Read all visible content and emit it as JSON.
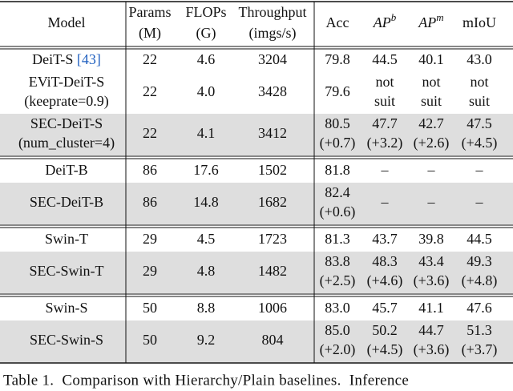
{
  "table": {
    "header": [
      {
        "lines": [
          "Model"
        ]
      },
      {
        "lines": [
          "Params",
          "(M)"
        ]
      },
      {
        "lines": [
          "FLOPs",
          "(G)"
        ]
      },
      {
        "lines": [
          "Throughput",
          "(imgs/s)"
        ]
      },
      {
        "lines": [
          "Acc"
        ]
      },
      {
        "base": "AP",
        "sup": "b"
      },
      {
        "base": "AP",
        "sup": "m"
      },
      {
        "lines": [
          "mIoU"
        ]
      }
    ],
    "delta_color": "#e8261f",
    "cite_color": "#1f5fbf",
    "shade_color": "#dedede",
    "groups": [
      [
        {
          "shaded": false,
          "cells": [
            {
              "lines": [
                "DeiT-S"
              ],
              "cite": "[43]"
            },
            {
              "lines": [
                "22"
              ]
            },
            {
              "lines": [
                "4.6"
              ]
            },
            {
              "lines": [
                "3204"
              ]
            },
            {
              "lines": [
                "79.8"
              ]
            },
            {
              "lines": [
                "44.5"
              ]
            },
            {
              "lines": [
                "40.1"
              ]
            },
            {
              "lines": [
                "43.0"
              ]
            }
          ]
        },
        {
          "shaded": false,
          "cells": [
            {
              "lines": [
                "EViT-DeiT-S",
                "(keeprate=0.9)"
              ]
            },
            {
              "lines": [
                "22"
              ]
            },
            {
              "lines": [
                "4.0"
              ]
            },
            {
              "lines": [
                "3428"
              ]
            },
            {
              "lines": [
                "79.6"
              ]
            },
            {
              "lines": [
                "not",
                "suit"
              ]
            },
            {
              "lines": [
                "not",
                "suit"
              ]
            },
            {
              "lines": [
                "not",
                "suit"
              ]
            }
          ]
        },
        {
          "shaded": true,
          "cells": [
            {
              "lines": [
                "SEC-DeiT-S",
                "(num_cluster=4)"
              ]
            },
            {
              "lines": [
                "22"
              ]
            },
            {
              "lines": [
                "4.1"
              ]
            },
            {
              "lines": [
                "3412"
              ]
            },
            {
              "lines": [
                "80.5"
              ],
              "delta": "(+0.7)"
            },
            {
              "lines": [
                "47.7"
              ],
              "delta": "(+3.2)"
            },
            {
              "lines": [
                "42.7"
              ],
              "delta": "(+2.6)"
            },
            {
              "lines": [
                "47.5"
              ],
              "delta": "(+4.5)"
            }
          ]
        }
      ],
      [
        {
          "shaded": false,
          "cells": [
            {
              "lines": [
                "DeiT-B"
              ]
            },
            {
              "lines": [
                "86"
              ]
            },
            {
              "lines": [
                "17.6"
              ]
            },
            {
              "lines": [
                "1502"
              ]
            },
            {
              "lines": [
                "81.8"
              ]
            },
            {
              "lines": [
                "–"
              ]
            },
            {
              "lines": [
                "–"
              ]
            },
            {
              "lines": [
                "–"
              ]
            }
          ]
        },
        {
          "shaded": true,
          "cells": [
            {
              "lines": [
                "SEC-DeiT-B"
              ]
            },
            {
              "lines": [
                "86"
              ]
            },
            {
              "lines": [
                "14.8"
              ]
            },
            {
              "lines": [
                "1682"
              ]
            },
            {
              "lines": [
                "82.4"
              ],
              "delta": "(+0.6)"
            },
            {
              "lines": [
                "–"
              ]
            },
            {
              "lines": [
                "–"
              ]
            },
            {
              "lines": [
                "–"
              ]
            }
          ]
        }
      ],
      [
        {
          "shaded": false,
          "cells": [
            {
              "lines": [
                "Swin-T"
              ]
            },
            {
              "lines": [
                "29"
              ]
            },
            {
              "lines": [
                "4.5"
              ]
            },
            {
              "lines": [
                "1723"
              ]
            },
            {
              "lines": [
                "81.3"
              ]
            },
            {
              "lines": [
                "43.7"
              ]
            },
            {
              "lines": [
                "39.8"
              ]
            },
            {
              "lines": [
                "44.5"
              ]
            }
          ]
        },
        {
          "shaded": true,
          "cells": [
            {
              "lines": [
                "SEC-Swin-T"
              ]
            },
            {
              "lines": [
                "29"
              ]
            },
            {
              "lines": [
                "4.8"
              ]
            },
            {
              "lines": [
                "1482"
              ]
            },
            {
              "lines": [
                "83.8"
              ],
              "delta": "(+2.5)"
            },
            {
              "lines": [
                "48.3"
              ],
              "delta": "(+4.6)"
            },
            {
              "lines": [
                "43.4"
              ],
              "delta": "(+3.6)"
            },
            {
              "lines": [
                "49.3"
              ],
              "delta": "(+4.8)"
            }
          ]
        }
      ],
      [
        {
          "shaded": false,
          "cells": [
            {
              "lines": [
                "Swin-S"
              ]
            },
            {
              "lines": [
                "50"
              ]
            },
            {
              "lines": [
                "8.8"
              ]
            },
            {
              "lines": [
                "1006"
              ]
            },
            {
              "lines": [
                "83.0"
              ]
            },
            {
              "lines": [
                "45.7"
              ]
            },
            {
              "lines": [
                "41.1"
              ]
            },
            {
              "lines": [
                "47.6"
              ]
            }
          ]
        },
        {
          "shaded": true,
          "cells": [
            {
              "lines": [
                "SEC-Swin-S"
              ]
            },
            {
              "lines": [
                "50"
              ]
            },
            {
              "lines": [
                "9.2"
              ]
            },
            {
              "lines": [
                "804"
              ]
            },
            {
              "lines": [
                "85.0"
              ],
              "delta": "(+2.0)"
            },
            {
              "lines": [
                "50.2"
              ],
              "delta": "(+4.5)"
            },
            {
              "lines": [
                "44.7"
              ],
              "delta": "(+3.6)"
            },
            {
              "lines": [
                "51.3"
              ],
              "delta": "(+3.7)"
            }
          ]
        }
      ]
    ],
    "caption": "Table 1.  Comparison with Hierarchy/Plain baselines.  Inference"
  }
}
